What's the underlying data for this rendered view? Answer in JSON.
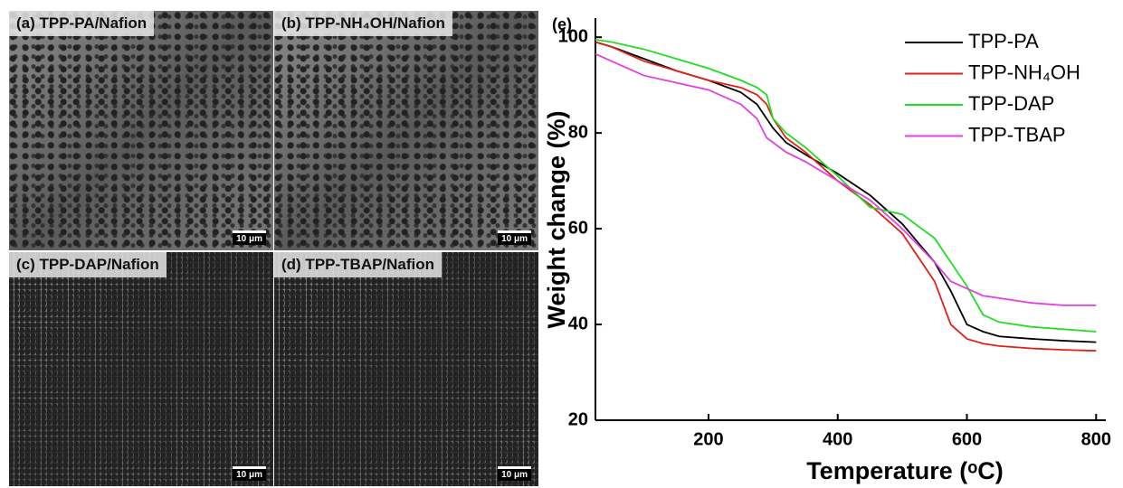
{
  "images": [
    {
      "label": "(a) TPP-PA/Nafion",
      "scale_bar": "10 μm"
    },
    {
      "label": "(b) TPP-NH₄OH/Nafion",
      "scale_bar": "10 μm"
    },
    {
      "label": "(c) TPP-DAP/Nafion",
      "scale_bar": "10 μm"
    },
    {
      "label": "(d) TPP-TBAP/Nafion",
      "scale_bar": "10 μm"
    }
  ],
  "chart_label": "(e)",
  "chart_data": {
    "type": "line",
    "x_label": "Temperature (ᵒC)",
    "y_label": "Weight change (%)",
    "x": [
      25,
      50,
      100,
      150,
      200,
      250,
      275,
      290,
      300,
      320,
      350,
      400,
      450,
      500,
      550,
      575,
      600,
      625,
      650,
      700,
      750,
      800
    ],
    "series": [
      {
        "name": "TPP-PA",
        "color": "#000000",
        "values": [
          99,
          98,
          95.5,
          93,
          91,
          88.5,
          86,
          83,
          81,
          78,
          75.5,
          71.5,
          67,
          61,
          53,
          47,
          40,
          38.5,
          37.5,
          37,
          36.6,
          36.3
        ]
      },
      {
        "name": "TPP-NH₄OH",
        "color": "#e0201b",
        "values": [
          99,
          98,
          95,
          93,
          91,
          89.5,
          88,
          86,
          83,
          79,
          76,
          70,
          65,
          59,
          49,
          40,
          37,
          36,
          35.5,
          35,
          34.7,
          34.5
        ]
      },
      {
        "name": "TPP-DAP",
        "color": "#22dd22",
        "values": [
          99.5,
          99,
          97.5,
          95.5,
          93.5,
          91,
          89.5,
          88,
          83,
          80,
          77,
          71,
          64.5,
          63,
          58,
          53,
          48,
          42,
          40.5,
          39.5,
          39,
          38.5
        ]
      },
      {
        "name": "TPP-TBAP",
        "color": "#e040e0",
        "values": [
          96.5,
          95,
          92,
          90.5,
          89,
          86,
          83,
          79,
          78,
          76,
          74,
          70,
          66,
          60,
          53,
          49,
          47.5,
          46,
          45.5,
          44.5,
          44,
          44
        ]
      }
    ],
    "xlim": [
      25,
      815
    ],
    "xticks": [
      200,
      400,
      600,
      800
    ],
    "ylim": [
      20,
      104
    ],
    "yticks": [
      20,
      40,
      60,
      80,
      100
    ],
    "legend": "upper right"
  }
}
